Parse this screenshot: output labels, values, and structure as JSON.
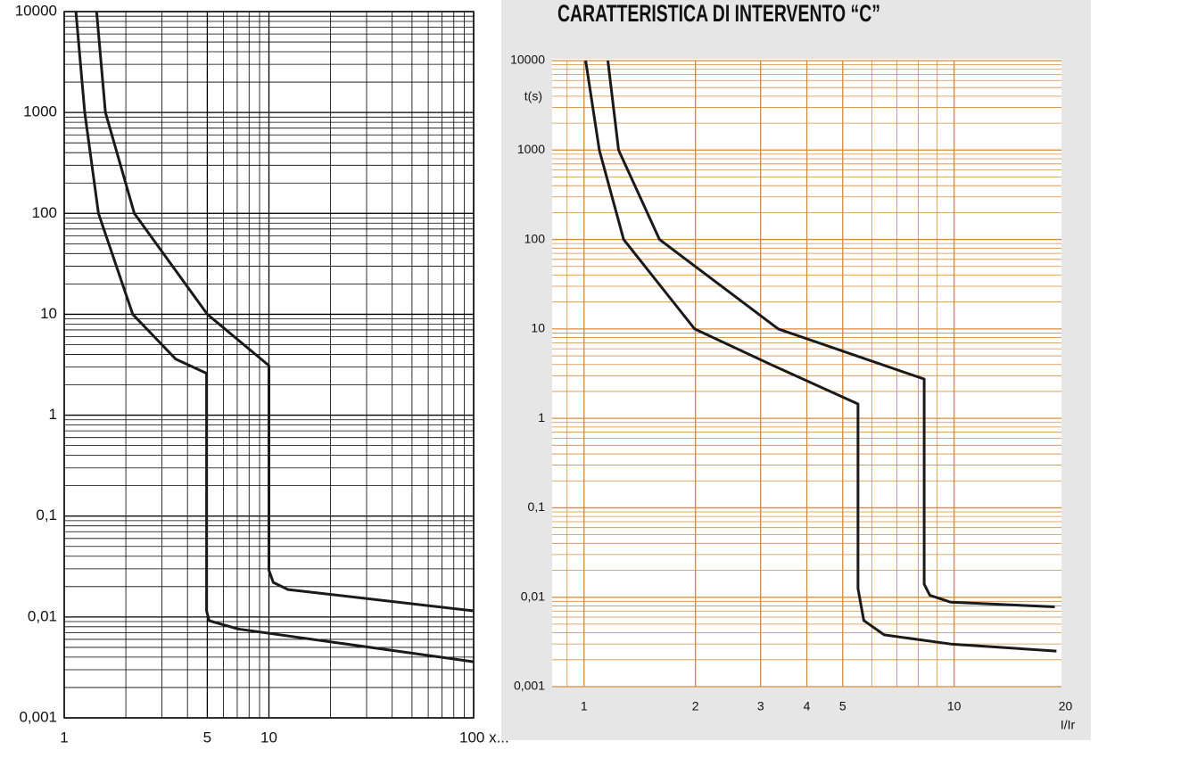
{
  "chart_data": [
    {
      "type": "line",
      "log_x": true,
      "log_y": true,
      "grid": true,
      "minor_grid": true,
      "grid_color": "#000000",
      "xlim": [
        1,
        100
      ],
      "ylim": [
        0.001,
        10000
      ],
      "xticks": [
        1,
        5,
        10,
        {
          "value": 100,
          "label": "100 x..."
        }
      ],
      "yticks": [
        {
          "value": 0.001,
          "label": "0,001"
        },
        {
          "value": 0.01,
          "label": "0,01"
        },
        {
          "value": 0.1,
          "label": "0,1"
        },
        1,
        10,
        100,
        1000,
        10000
      ],
      "series": [
        {
          "color": "#1a1a1a",
          "x": [
            1.14,
            1.26,
            1.47,
            2.16,
            3.5,
            4.96,
            4.96,
            5.1,
            7.07,
            100
          ],
          "values": [
            10000,
            1000,
            100,
            10,
            3.6,
            2.6,
            0.0115,
            0.0092,
            0.0076,
            0.0036
          ]
        },
        {
          "color": "#1a1a1a",
          "x": [
            1.44,
            1.59,
            2.2,
            5.0,
            10,
            10,
            10.5,
            12.4,
            100
          ],
          "values": [
            10000,
            1000,
            100,
            10,
            3.1,
            0.029,
            0.022,
            0.0187,
            0.0115
          ]
        }
      ]
    },
    {
      "type": "line",
      "log_x": true,
      "log_y": true,
      "grid": true,
      "minor_grid": true,
      "grid_color": "#d98c3a",
      "title": "CARATTERISTICA DI INTERVENTO “C”",
      "y_label": "t(s)",
      "x_label": "I/Ir",
      "xlim": [
        0.82,
        19.5
      ],
      "ylim": [
        0.001,
        10000
      ],
      "xticks": [
        1,
        2,
        3,
        4,
        5,
        10,
        20
      ],
      "yticks": [
        {
          "value": 0.001,
          "label": "0,001"
        },
        {
          "value": 0.01,
          "label": "0,01"
        },
        {
          "value": 0.1,
          "label": "0,1"
        },
        1,
        10,
        100,
        1000,
        10000
      ],
      "series": [
        {
          "color": "#1a1a1a",
          "x": [
            1.01,
            1.1,
            1.28,
            1.99,
            3.2,
            5.5,
            5.5,
            5.7,
            6.47,
            9.8,
            18.9
          ],
          "values": [
            10000,
            1000,
            100,
            10,
            4,
            1.45,
            0.0125,
            0.0055,
            0.0038,
            0.003,
            0.0025
          ]
        },
        {
          "color": "#1a1a1a",
          "x": [
            1.16,
            1.24,
            1.6,
            3.35,
            8.3,
            8.3,
            8.6,
            9.8,
            18.7
          ],
          "values": [
            10000,
            1000,
            100,
            10,
            2.75,
            0.014,
            0.0105,
            0.0088,
            0.0078
          ]
        }
      ]
    }
  ]
}
